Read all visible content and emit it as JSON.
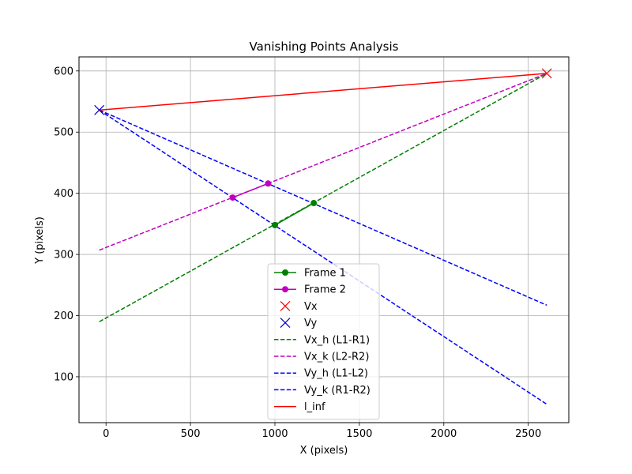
{
  "chart_data": {
    "type": "line",
    "title": "Vanishing Points Analysis",
    "xlabel": "X (pixels)",
    "ylabel": "Y (pixels)",
    "xlim": [
      -160,
      2740
    ],
    "ylim": [
      25,
      623
    ],
    "xticks": [
      0,
      500,
      1000,
      1500,
      2000,
      2500
    ],
    "yticks": [
      100,
      200,
      300,
      400,
      500,
      600
    ],
    "grid": true,
    "legend_position": "lower center",
    "series": [
      {
        "name": "Frame 1",
        "style": "solid-marker",
        "color": "#008000",
        "x": [
          1000,
          1230
        ],
        "y": [
          348,
          384
        ]
      },
      {
        "name": "Frame 2",
        "style": "solid-marker",
        "color": "#bf00bf",
        "x": [
          750,
          960
        ],
        "y": [
          393,
          416
        ]
      },
      {
        "name": "Vx",
        "style": "x-marker",
        "color": "#ff0000",
        "x": [
          2610
        ],
        "y": [
          596
        ]
      },
      {
        "name": "Vy",
        "style": "x-marker",
        "color": "#0000cc",
        "x": [
          -40
        ],
        "y": [
          536
        ]
      },
      {
        "name": "Vx_h (L1-R1)",
        "style": "dashed",
        "color": "#008000",
        "x": [
          -40,
          2610
        ],
        "y": [
          190,
          596
        ]
      },
      {
        "name": "Vx_k (L2-R2)",
        "style": "dashed",
        "color": "#bf00bf",
        "x": [
          -40,
          2610
        ],
        "y": [
          307,
          596
        ]
      },
      {
        "name": "Vy_h (L1-L2)",
        "style": "dashed",
        "color": "#0000ff",
        "x": [
          -40,
          2610
        ],
        "y": [
          536,
          55
        ]
      },
      {
        "name": "Vy_k (R1-R2)",
        "style": "dashed",
        "color": "#0000ff",
        "x": [
          -40,
          2610
        ],
        "y": [
          536,
          217
        ]
      },
      {
        "name": "l_inf",
        "style": "solid",
        "color": "#ff0000",
        "x": [
          -40,
          2610
        ],
        "y": [
          536,
          596
        ]
      }
    ]
  }
}
